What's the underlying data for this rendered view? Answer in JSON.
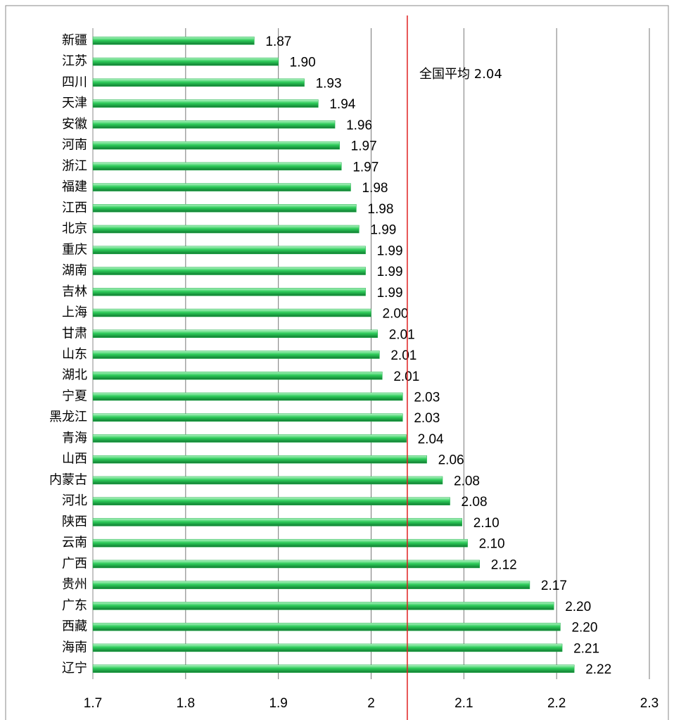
{
  "chart_data": {
    "type": "bar",
    "orientation": "horizontal",
    "categories": [
      "新疆",
      "江苏",
      "四川",
      "天津",
      "安徽",
      "河南",
      "浙江",
      "福建",
      "江西",
      "北京",
      "重庆",
      "湖南",
      "吉林",
      "上海",
      "甘肃",
      "山东",
      "湖北",
      "宁夏",
      "黑龙江",
      "青海",
      "山西",
      "内蒙古",
      "河北",
      "陕西",
      "云南",
      "广西",
      "贵州",
      "广东",
      "西藏",
      "海南",
      "辽宁"
    ],
    "values": [
      1.874,
      1.9,
      1.928,
      1.943,
      1.961,
      1.966,
      1.968,
      1.978,
      1.984,
      1.987,
      1.994,
      1.994,
      1.994,
      2.0,
      2.007,
      2.009,
      2.012,
      2.034,
      2.034,
      2.038,
      2.06,
      2.077,
      2.085,
      2.098,
      2.104,
      2.117,
      2.171,
      2.197,
      2.204,
      2.206,
      2.219
    ],
    "value_labels": [
      "1.87",
      "1.90",
      "1.93",
      "1.94",
      "1.96",
      "1.97",
      "1.97",
      "1.98",
      "1.98",
      "1.99",
      "1.99",
      "1.99",
      "1.99",
      "2.00",
      "2.01",
      "2.01",
      "2.01",
      "2.03",
      "2.03",
      "2.04",
      "2.06",
      "2.08",
      "2.08",
      "2.10",
      "2.10",
      "2.12",
      "2.17",
      "2.20",
      "2.20",
      "2.21",
      "2.22"
    ],
    "color": "#22b14c",
    "xlim": [
      1.7,
      2.3
    ],
    "xticks": [
      1.7,
      1.8,
      1.9,
      2,
      2.1,
      2.2,
      2.3
    ],
    "grid": true,
    "reference_line": {
      "value": 2.039,
      "label": "全国平均 2.04",
      "color": "#e02020"
    }
  }
}
